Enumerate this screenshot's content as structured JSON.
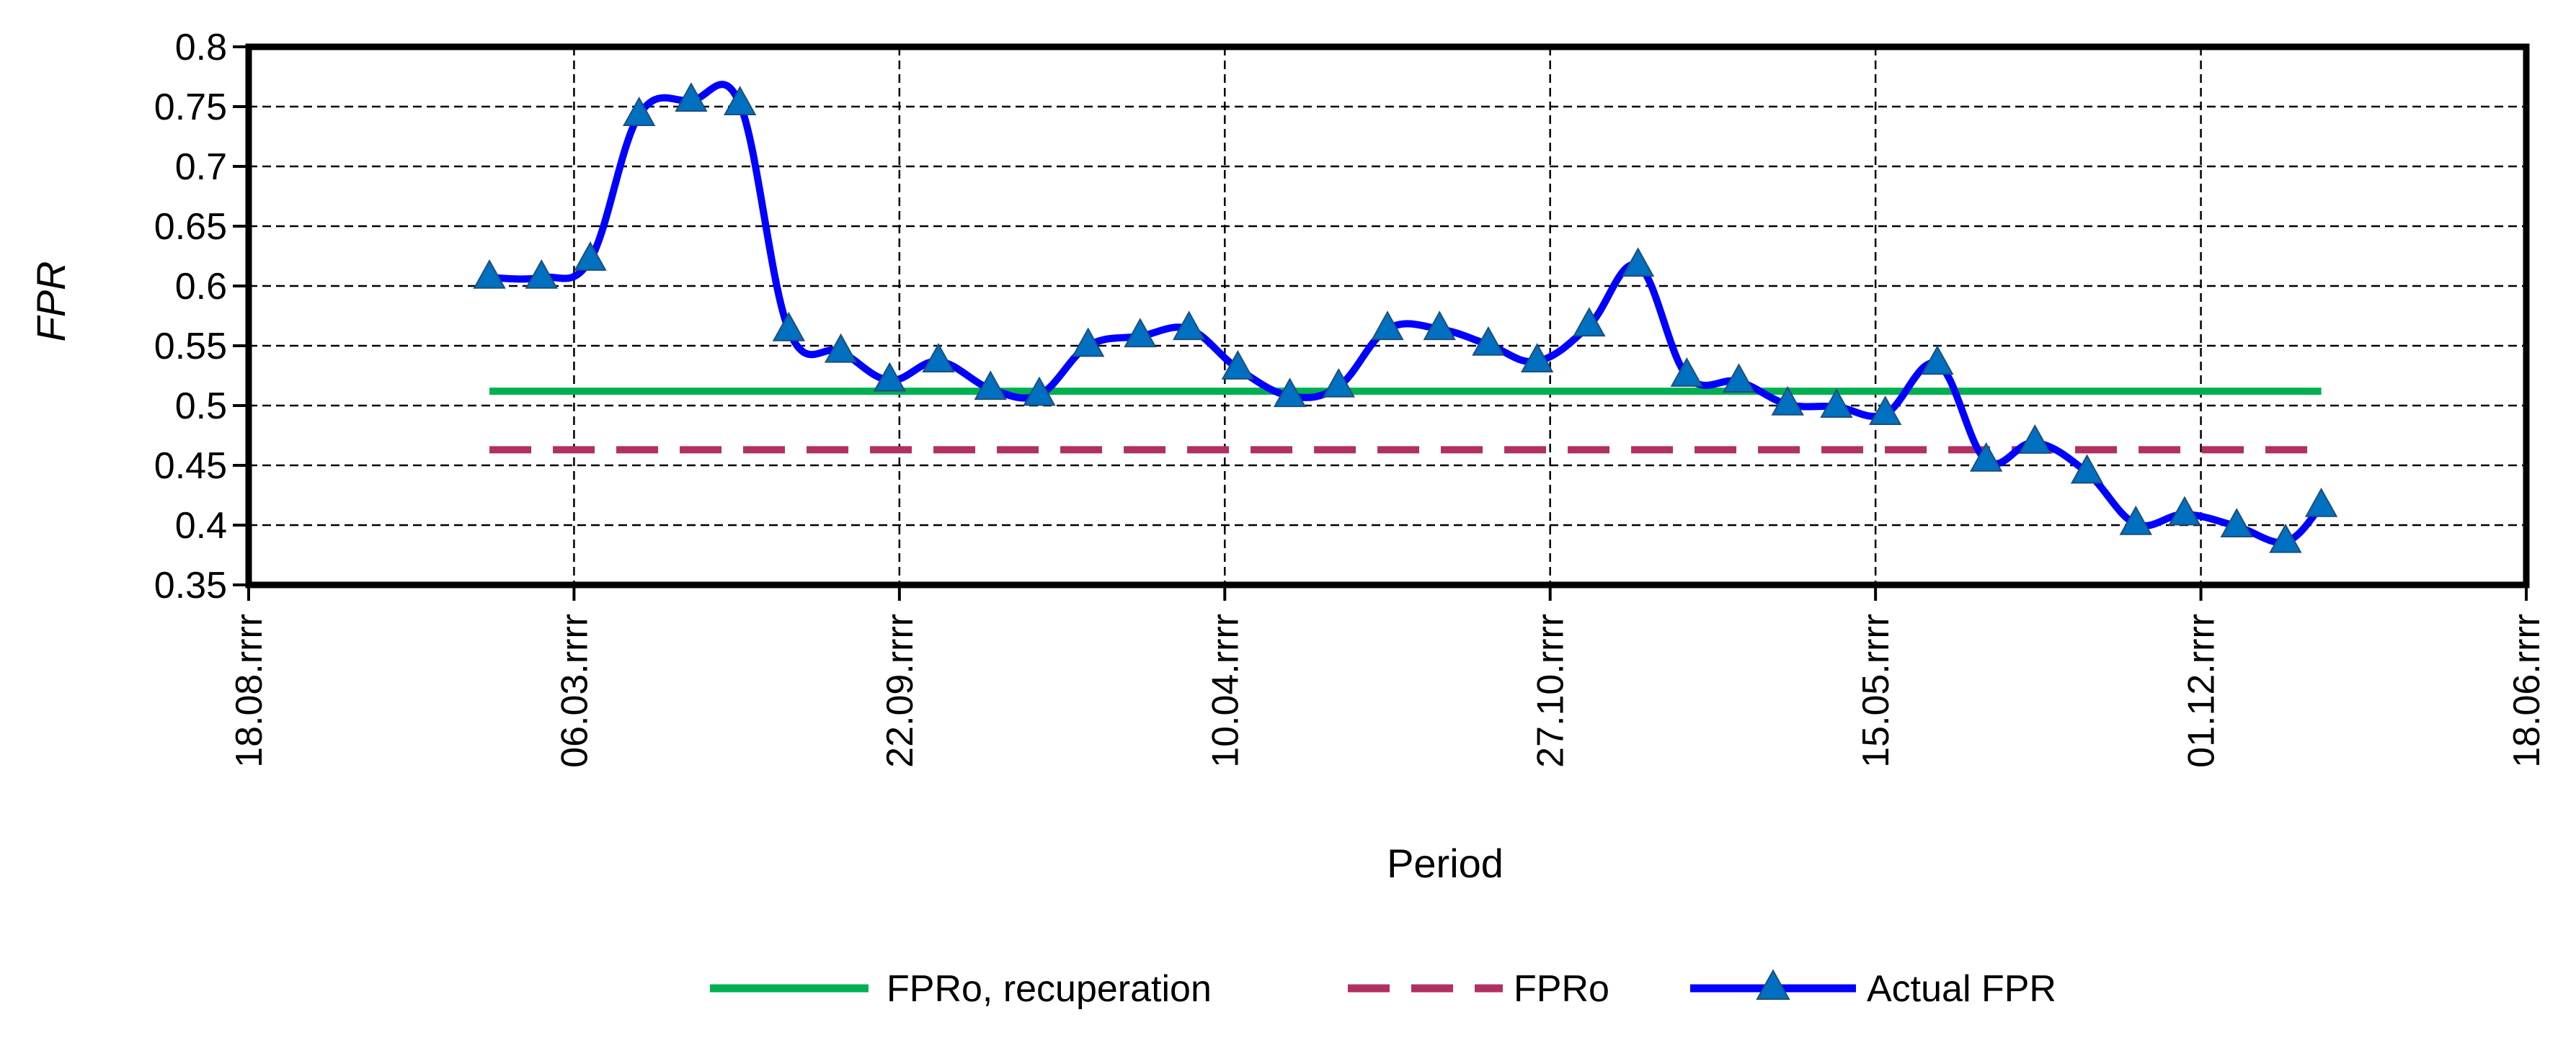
{
  "chart_data": {
    "type": "line",
    "title": "",
    "xlabel": "Period",
    "ylabel": "FPR",
    "ylim": [
      0.35,
      0.8
    ],
    "yticks": [
      "0.8",
      "0.75",
      "0.7",
      "0.65",
      "0.6",
      "0.55",
      "0.5",
      "0.45",
      "0.4",
      "0.35"
    ],
    "xticks": [
      "18.08.rrrr",
      "06.03.rrrr",
      "22.09.rrrr",
      "10.04.rrrr",
      "27.10.rrrr",
      "15.05.rrrr",
      "01.12.rrrr",
      "18.06.rrrr"
    ],
    "x_range_tick_index": [
      0,
      7
    ],
    "grid": true,
    "legend_position": "bottom",
    "series": [
      {
        "name": "FPRo,  recuperation",
        "style": "solid",
        "color": "#00b050",
        "x": [
          0.74,
          6.37
        ],
        "values": [
          0.512,
          0.512
        ]
      },
      {
        "name": "FPRo",
        "style": "dashed",
        "color": "#b03060",
        "x": [
          0.74,
          6.37
        ],
        "values": [
          0.463,
          0.463
        ]
      },
      {
        "name": "Actual FPR",
        "style": "smooth-line-with-triangle-markers",
        "color": "#0000ff",
        "marker_color": "#0070c0",
        "x": [
          0.74,
          0.9,
          1.05,
          1.2,
          1.36,
          1.51,
          1.66,
          1.82,
          1.97,
          2.12,
          2.28,
          2.43,
          2.58,
          2.74,
          2.89,
          3.04,
          3.2,
          3.35,
          3.5,
          3.66,
          3.81,
          3.96,
          4.12,
          4.27,
          4.42,
          4.58,
          4.73,
          4.88,
          5.03,
          5.19,
          5.34,
          5.49,
          5.65,
          5.8,
          5.95,
          6.11,
          6.26,
          6.37
        ],
        "values": [
          0.607,
          0.607,
          0.622,
          0.743,
          0.755,
          0.752,
          0.563,
          0.545,
          0.521,
          0.537,
          0.514,
          0.509,
          0.55,
          0.558,
          0.564,
          0.531,
          0.508,
          0.516,
          0.564,
          0.564,
          0.551,
          0.537,
          0.567,
          0.617,
          0.525,
          0.52,
          0.501,
          0.499,
          0.493,
          0.535,
          0.454,
          0.469,
          0.444,
          0.401,
          0.409,
          0.399,
          0.386,
          0.416
        ]
      }
    ]
  }
}
